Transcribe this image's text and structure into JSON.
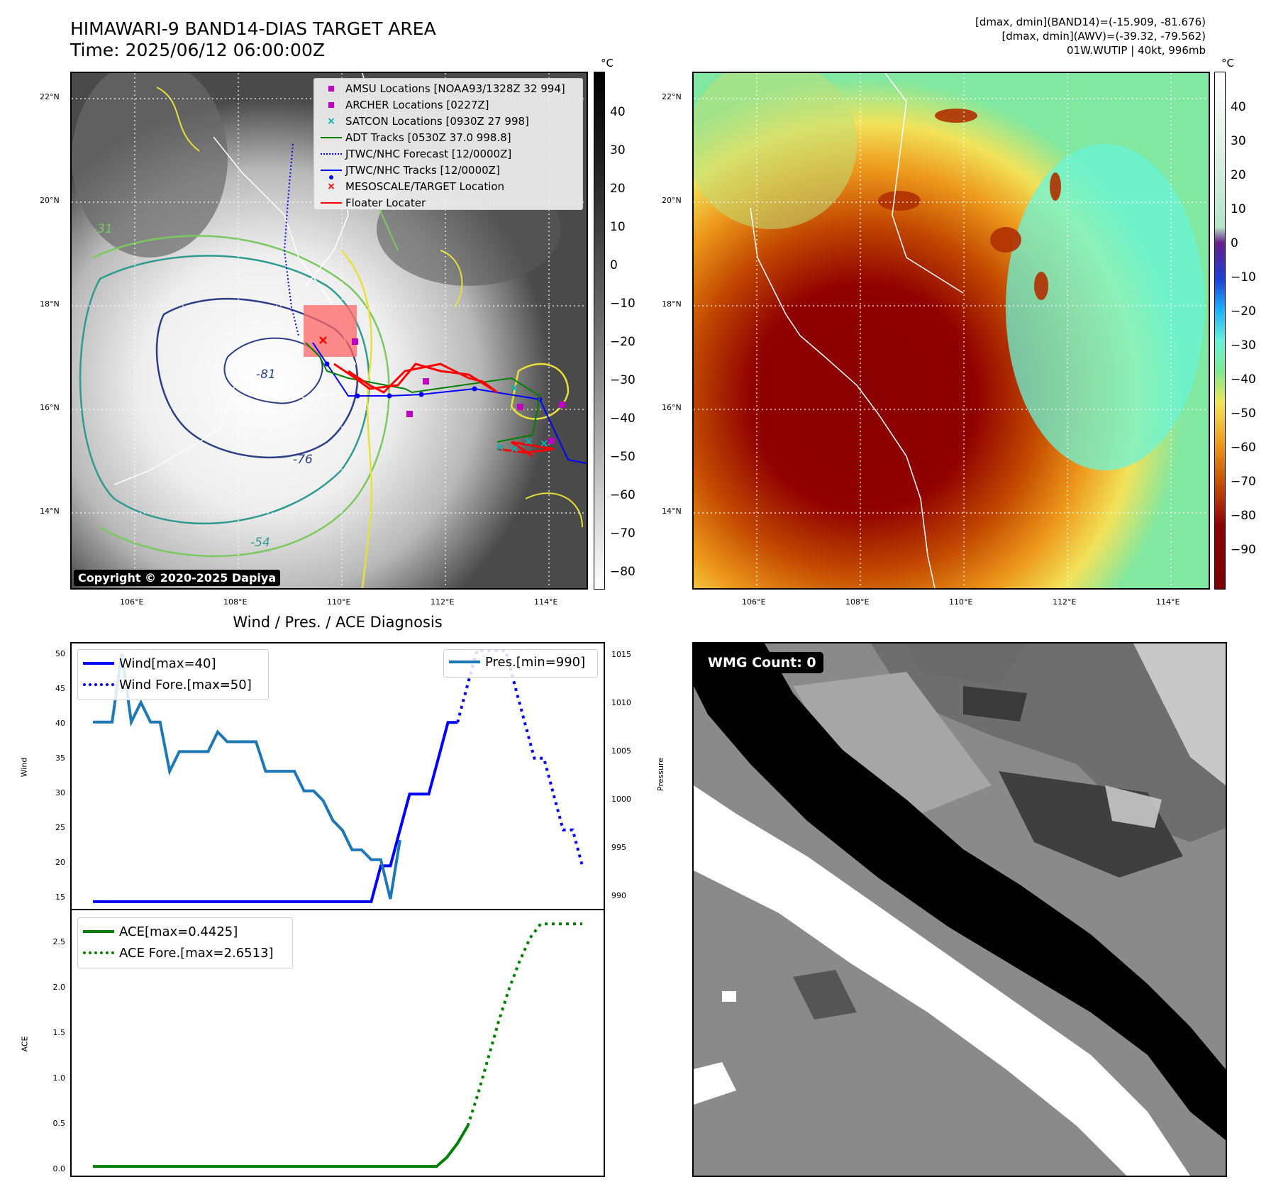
{
  "header": {
    "title_line1": "HIMAWARI-9 BAND14-DIAS TARGET AREA",
    "title_line2": "Time: 2025/06/12 06:00:00Z",
    "info_line1": "[dmax, dmin](BAND14)=(-15.909, -81.676)",
    "info_line2": "[dmax, dmin](AWV)=(-39.32, -79.562)",
    "info_line3": "01W.WUTIP | 40kt, 996mb"
  },
  "map": {
    "lat_labels": [
      "22°N",
      "20°N",
      "18°N",
      "16°N",
      "14°N"
    ],
    "lon_labels": [
      "106°E",
      "108°E",
      "110°E",
      "112°E",
      "114°E"
    ],
    "contour_labels": [
      "-81",
      "-76",
      "-54",
      "-31"
    ],
    "copyright": "Copyright © 2020-2025 Dapiya",
    "legend": [
      {
        "label": "AMSU Locations [NOAA93/1328Z 32 994]",
        "color": "#c000c0",
        "symbol": "square"
      },
      {
        "label": "ARCHER Locations [0227Z]",
        "color": "#c000c0",
        "symbol": "square"
      },
      {
        "label": "SATCON Locations [0930Z 27 998]",
        "color": "#00b0b0",
        "symbol": "x"
      },
      {
        "label": "ADT Tracks [0530Z 37.0 998.8]",
        "color": "#008000",
        "symbol": "line"
      },
      {
        "label": "JTWC/NHC Forecast [12/0000Z]",
        "color": "#0000ff",
        "symbol": "dotted"
      },
      {
        "label": "JTWC/NHC Tracks [12/0000Z]",
        "color": "#0000ff",
        "symbol": "line-dot"
      },
      {
        "label": "MESOSCALE/TARGET Location",
        "color": "#ff0000",
        "symbol": "x"
      },
      {
        "label": "Floater Locater",
        "color": "#ff0000",
        "symbol": "line"
      }
    ]
  },
  "colorbars": {
    "unit": "°C",
    "gray_ticks": [
      "40",
      "30",
      "20",
      "10",
      "0",
      "−10",
      "−20",
      "−30",
      "−40",
      "−50",
      "−60",
      "−70",
      "−80"
    ],
    "color_ticks": [
      "40",
      "30",
      "20",
      "10",
      "0",
      "−10",
      "−20",
      "−30",
      "−40",
      "−50",
      "−60",
      "−70",
      "−80",
      "−90"
    ]
  },
  "diagnosis": {
    "title": "Wind / Pres. / ACE Diagnosis",
    "wind_ylabel": "Wind",
    "pres_ylabel": "Pressure",
    "ace_ylabel": "ACE",
    "wind_ticks": [
      "50",
      "45",
      "40",
      "35",
      "30",
      "25",
      "20",
      "15"
    ],
    "pres_ticks": [
      "1015",
      "1010",
      "1005",
      "1000",
      "995",
      "990"
    ],
    "ace_ticks": [
      "2.5",
      "2.0",
      "1.5",
      "1.0",
      "0.5",
      "0.0"
    ],
    "legend_wind": "Wind[max=40]",
    "legend_wind_fore": "Wind Fore.[max=50]",
    "legend_pres": "Pres.[min=990]",
    "legend_ace": "ACE[max=0.4425]",
    "legend_ace_fore": "ACE Fore.[max=2.6513]"
  },
  "wmg": {
    "count_label": "WMG Count: 0"
  },
  "colors": {
    "wind": "#0000ff",
    "pressure": "#1f77b4",
    "ace": "#008000"
  },
  "chart_data": [
    {
      "type": "line",
      "title": "Wind / Pres. / ACE Diagnosis",
      "ylabel": "Wind",
      "ylim": [
        14,
        51
      ],
      "series": [
        {
          "name": "Wind[max=40]",
          "values": [
            15,
            15,
            15,
            15,
            15,
            15,
            15,
            15,
            15,
            15,
            15,
            15,
            15,
            15,
            15,
            15,
            15,
            15,
            15,
            15,
            15,
            15,
            15,
            15,
            15,
            15,
            15,
            15,
            15,
            15,
            20,
            20,
            25,
            30,
            30,
            30,
            35,
            40,
            40
          ]
        },
        {
          "name": "Wind Fore.[max=50]",
          "values": [
            40,
            45,
            50,
            50,
            50,
            50,
            45,
            40,
            35,
            35,
            30,
            25,
            25,
            20
          ],
          "start_index": 38
        }
      ]
    },
    {
      "type": "line",
      "ylabel": "Pressure",
      "ylim": [
        989,
        1016
      ],
      "series": [
        {
          "name": "Pres.[min=990]",
          "values": [
            1008,
            1008,
            1008,
            1015,
            1008,
            1010,
            1008,
            1008,
            1003,
            1005,
            1005,
            1005,
            1005,
            1007,
            1006,
            1006,
            1006,
            1006,
            1003,
            1003,
            1003,
            1003,
            1001,
            1001,
            1000,
            998,
            997,
            995,
            995,
            994,
            994,
            990,
            996
          ]
        }
      ]
    },
    {
      "type": "line",
      "ylabel": "ACE",
      "ylim": [
        -0.1,
        2.8
      ],
      "series": [
        {
          "name": "ACE[max=0.4425]",
          "values": [
            0,
            0,
            0,
            0,
            0,
            0,
            0,
            0,
            0,
            0,
            0,
            0,
            0,
            0,
            0,
            0,
            0,
            0,
            0,
            0,
            0,
            0,
            0,
            0,
            0,
            0,
            0,
            0,
            0,
            0,
            0,
            0,
            0,
            0,
            0.1,
            0.25,
            0.4425
          ]
        },
        {
          "name": "ACE Fore.[max=2.6513]",
          "values": [
            0.4425,
            0.8,
            1.2,
            1.6,
            1.95,
            2.25,
            2.5,
            2.6513,
            2.6513,
            2.6513,
            2.6513,
            2.6513
          ],
          "start_index": 36
        }
      ]
    }
  ]
}
